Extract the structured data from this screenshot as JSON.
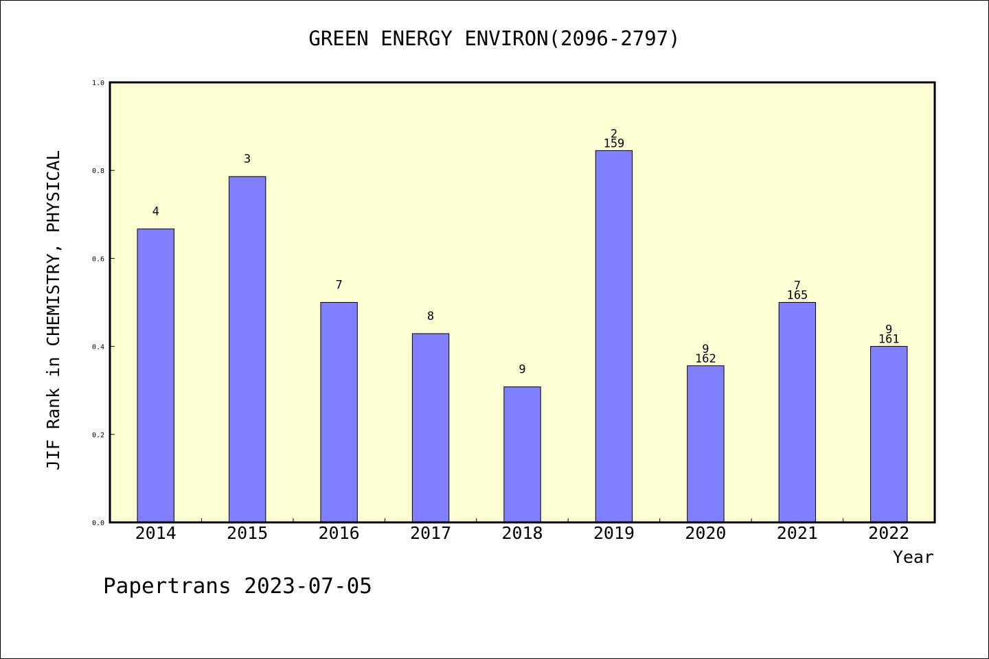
{
  "chart_data": {
    "type": "bar",
    "title": "GREEN ENERGY ENVIRON(2096-2797)",
    "xlabel": "Year",
    "ylabel": "JIF Rank in CHEMISTRY, PHYSICAL",
    "ylim": [
      0,
      1.0
    ],
    "yticks": [
      "0.0",
      "0.2",
      "0.4",
      "0.6",
      "0.8",
      "1.0"
    ],
    "categories": [
      "2014",
      "2015",
      "2016",
      "2017",
      "2018",
      "2019",
      "2020",
      "2021",
      "2022"
    ],
    "values": [
      0.667,
      0.786,
      0.5,
      0.429,
      0.308,
      0.845,
      0.356,
      0.5,
      0.4
    ],
    "rank_labels": [
      "4",
      "3",
      "7",
      "8",
      "9",
      "2",
      "9",
      "7",
      "9"
    ],
    "total_labels": [
      "",
      "",
      "",
      "",
      "",
      "159",
      "162",
      "165",
      "161"
    ],
    "grid": false,
    "colors": {
      "plot_background": "#ffffd4",
      "bar_fill": "#8080ff",
      "bar_stroke": "#000000"
    }
  },
  "footer": "Papertrans 2023-07-05"
}
